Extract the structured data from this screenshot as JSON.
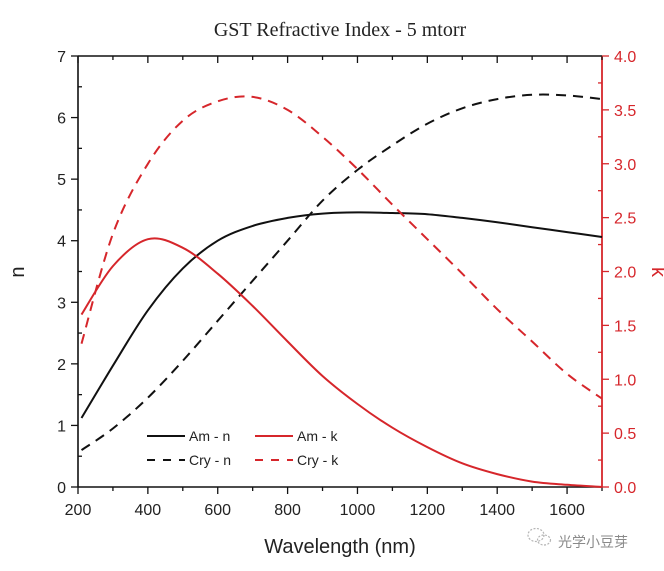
{
  "chart_data": {
    "type": "line",
    "title": "GST Refractive Index - 5 mtorr",
    "xlabel": "Wavelength (nm)",
    "ylabel": "n",
    "ylabel_right": "k",
    "xlim": [
      200,
      1700
    ],
    "ylim": [
      0,
      7
    ],
    "ylim_right": [
      0,
      4.0
    ],
    "x_ticks": [
      200,
      400,
      600,
      800,
      1000,
      1200,
      1400,
      1600
    ],
    "x_tick_labels": [
      "200",
      "400",
      "600",
      "800",
      "1000",
      "1200",
      "1400",
      "1600"
    ],
    "y_ticks": [
      0,
      1,
      2,
      3,
      4,
      5,
      6,
      7
    ],
    "y_tick_labels": [
      "0",
      "1",
      "2",
      "3",
      "4",
      "5",
      "6",
      "7"
    ],
    "y_ticks_right": [
      0,
      0.5,
      1.0,
      1.5,
      2.0,
      2.5,
      3.0,
      3.5,
      4.0
    ],
    "y_tick_labels_right": [
      "0.0",
      "0.5",
      "1.0",
      "1.5",
      "2.0",
      "2.5",
      "3.0",
      "3.5",
      "4.0"
    ],
    "grid": false,
    "legend_position": "bottom-left",
    "x": [
      210,
      300,
      400,
      500,
      600,
      700,
      800,
      900,
      1000,
      1100,
      1200,
      1300,
      1400,
      1500,
      1600,
      1700
    ],
    "series": [
      {
        "name": "Am - n",
        "axis": "left",
        "color": "#111111",
        "dash": "solid",
        "values": [
          1.12,
          1.97,
          2.87,
          3.55,
          4.0,
          4.24,
          4.37,
          4.44,
          4.46,
          4.45,
          4.43,
          4.37,
          4.3,
          4.22,
          4.14,
          4.06
        ]
      },
      {
        "name": "Cry - n",
        "axis": "left",
        "color": "#111111",
        "dash": "dashed",
        "values": [
          0.6,
          0.95,
          1.45,
          2.05,
          2.7,
          3.35,
          4.0,
          4.65,
          5.15,
          5.55,
          5.9,
          6.15,
          6.3,
          6.37,
          6.36,
          6.3
        ]
      },
      {
        "name": "Am - k",
        "axis": "right",
        "color": "#d6262b",
        "dash": "solid",
        "values": [
          1.6,
          2.05,
          2.3,
          2.22,
          1.98,
          1.68,
          1.35,
          1.03,
          0.77,
          0.55,
          0.37,
          0.22,
          0.12,
          0.05,
          0.02,
          0.0
        ]
      },
      {
        "name": "Cry - k",
        "axis": "right",
        "color": "#d6262b",
        "dash": "dashed",
        "values": [
          1.33,
          2.35,
          3.0,
          3.4,
          3.58,
          3.62,
          3.5,
          3.25,
          2.95,
          2.62,
          2.3,
          1.98,
          1.65,
          1.35,
          1.05,
          0.82
        ]
      }
    ]
  },
  "colors": {
    "left_axis": "#111111",
    "right_axis": "#d6262b"
  },
  "watermark": {
    "text": "光学小豆芽",
    "icon": "wechat-icon"
  }
}
